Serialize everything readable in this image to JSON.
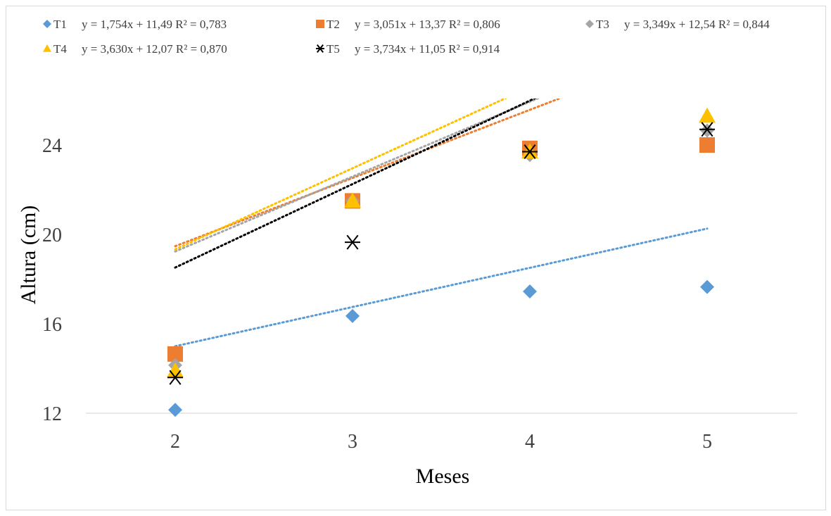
{
  "chart_data": {
    "type": "scatter",
    "xlabel": "Meses",
    "ylabel": "Altura (cm)",
    "x_ticks": [
      "2",
      "3",
      "4",
      "5"
    ],
    "y_ticks": [
      "12",
      "16",
      "20",
      "24"
    ],
    "xlim": [
      1.6,
      5.5
    ],
    "ylim": [
      12,
      26
    ],
    "x": [
      2,
      3,
      4,
      5
    ],
    "trendline": "linear-dotted",
    "legend_position": "top",
    "series": [
      {
        "name": "T1",
        "equation": "y = 1,754x + 11,49 R² = 0,783",
        "values": [
          12.15,
          16.35,
          17.45,
          17.65
        ],
        "slope": 1.754,
        "intercept": 11.49,
        "color": "#5B9BD5",
        "marker": "diamond"
      },
      {
        "name": "T2",
        "equation": "y = 3,051x + 13,37 R² = 0,806",
        "values": [
          14.65,
          21.5,
          23.85,
          24.0
        ],
        "slope": 3.051,
        "intercept": 13.37,
        "color": "#ED7D31",
        "marker": "square"
      },
      {
        "name": "T3",
        "equation": "y = 3,349x + 12,54 R² = 0,844",
        "values": [
          14.15,
          21.5,
          23.55,
          24.65
        ],
        "slope": 3.349,
        "intercept": 12.54,
        "color": "#A5A5A5",
        "marker": "diamond"
      },
      {
        "name": "T4",
        "equation": "y = 3,630x + 12,07 R² = 0,870",
        "values": [
          13.9,
          21.5,
          23.7,
          25.3
        ],
        "slope": 3.63,
        "intercept": 12.07,
        "color": "#FFC000",
        "marker": "triangle"
      },
      {
        "name": "T5",
        "equation": "y = 3,734x + 11,05 R² = 0,914",
        "values": [
          13.6,
          19.65,
          23.7,
          24.7
        ],
        "slope": 3.734,
        "intercept": 11.05,
        "color": "#000000",
        "marker": "star"
      }
    ]
  }
}
